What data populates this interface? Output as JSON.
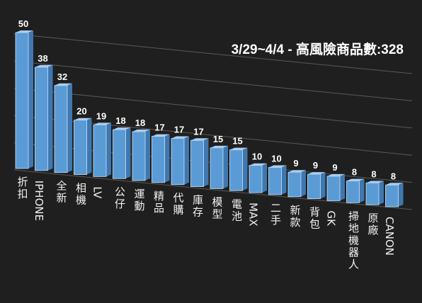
{
  "chart_data": {
    "type": "bar",
    "title": "3/29~4/4 - 高風險商品數:328",
    "categories": [
      "折扣",
      "IPHONE",
      "全新",
      "相機",
      "LV",
      "公仔",
      "運動",
      "精品",
      "代購",
      "庫存",
      "模型",
      "電池",
      "MAX",
      "二手",
      "新款",
      "背包",
      "GK",
      "掃地機器人",
      "原廠",
      "CANON"
    ],
    "values": [
      50,
      38,
      32,
      20,
      19,
      18,
      18,
      17,
      17,
      17,
      15,
      15,
      10,
      10,
      9,
      9,
      9,
      8,
      8,
      8
    ],
    "ylim": [
      0,
      50
    ],
    "grid": true,
    "legend": "none",
    "colors": {
      "background": "#1f1f1f",
      "bar_front": "#5b9bd5",
      "bar_side": "#3f78b0",
      "bar_top": "#a9cdf0",
      "gridline": "#8a8a8a",
      "text": "#ffffff"
    }
  }
}
